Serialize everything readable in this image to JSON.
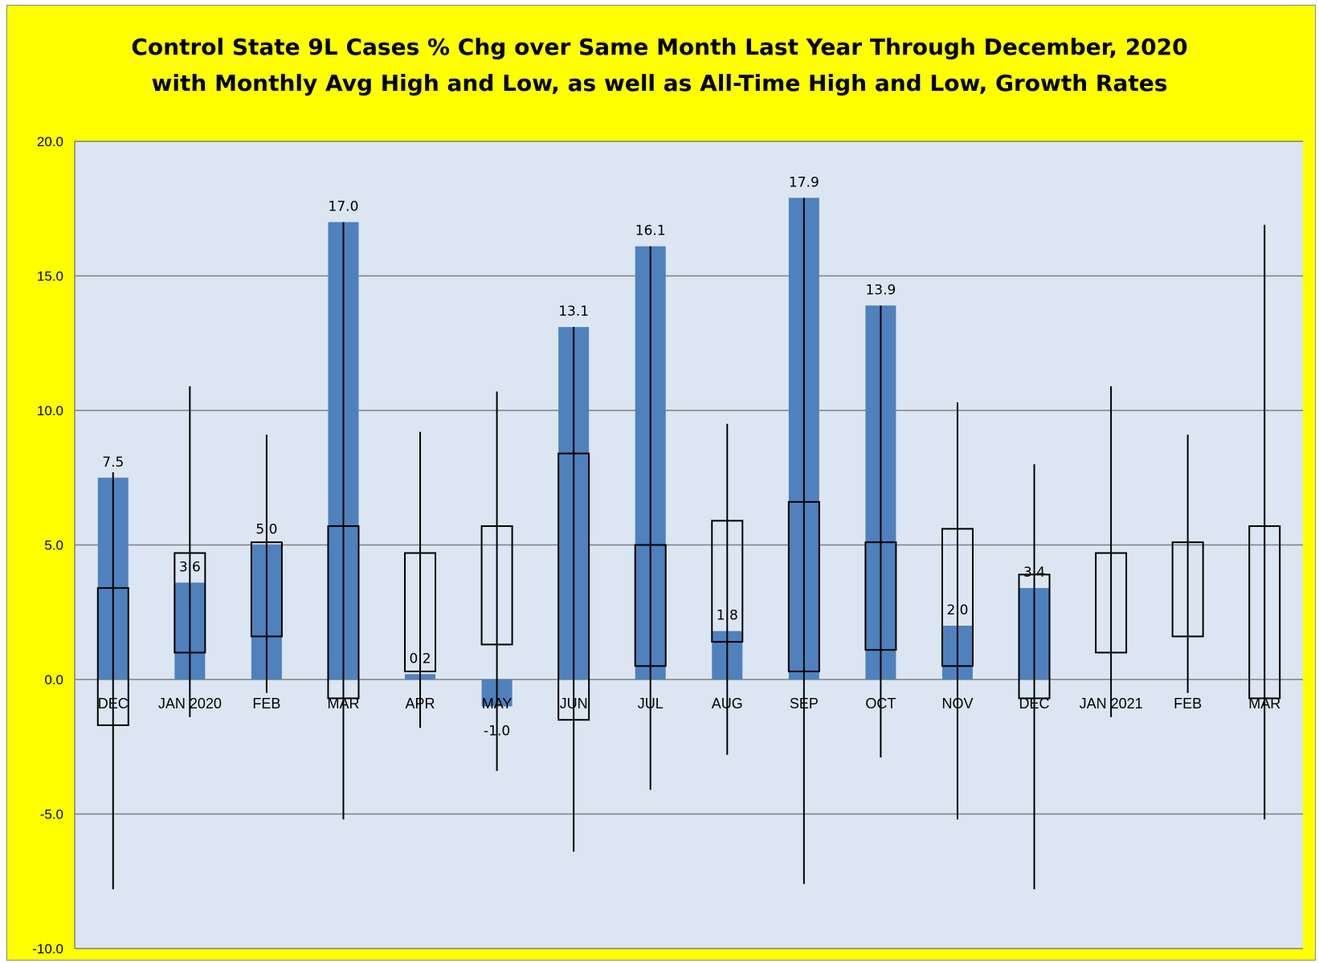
{
  "chart_data": {
    "type": "bar",
    "title_line1": "Control State 9L Cases % Chg over Same Month Last Year Through December, 2020",
    "title_line2": "with Monthly Avg High and Low, as well as All-Time High and Low,  Growth Rates",
    "xlabel": "",
    "ylabel": "",
    "ylim": [
      -10,
      20
    ],
    "yticks": [
      "20.0",
      "15.0",
      "10.0",
      "5.0",
      "0.0",
      "-5.0",
      "-10.0"
    ],
    "ytick_values": [
      20,
      15,
      10,
      5,
      0,
      -5,
      -10
    ],
    "grid": true,
    "categories": [
      "DEC",
      "JAN 2020",
      "FEB",
      "MAR",
      "APR",
      "MAY",
      "JUN",
      "JUL",
      "AUG",
      "SEP",
      "OCT",
      "NOV",
      "DEC",
      "JAN 2021",
      "FEB",
      "MAR"
    ],
    "actual": [
      7.5,
      3.6,
      5.0,
      17.0,
      0.2,
      -1.0,
      13.1,
      16.1,
      1.8,
      17.9,
      13.9,
      2.0,
      3.4,
      null,
      null,
      null
    ],
    "actual_labels": [
      "7.5",
      "3.6",
      "5.0",
      "17.0",
      "0.2",
      "-1.0",
      "13.1",
      "16.1",
      "1.8",
      "17.9",
      "13.9",
      "2.0",
      "3.4",
      "",
      "",
      ""
    ],
    "avg_high": [
      3.4,
      4.7,
      5.1,
      5.7,
      4.7,
      5.7,
      8.4,
      5.0,
      5.9,
      6.6,
      5.1,
      5.6,
      3.9,
      4.7,
      5.1,
      5.7
    ],
    "avg_low": [
      -1.7,
      1.0,
      1.6,
      -0.7,
      0.3,
      1.3,
      -1.5,
      0.5,
      1.4,
      0.3,
      1.1,
      0.5,
      -0.7,
      1.0,
      1.6,
      -0.7
    ],
    "all_time_high": [
      7.7,
      10.9,
      9.1,
      17.0,
      9.2,
      10.7,
      13.1,
      16.1,
      9.5,
      17.9,
      13.9,
      10.3,
      8.0,
      10.9,
      9.1,
      16.9
    ],
    "all_time_low": [
      -7.8,
      -1.4,
      -0.5,
      -5.2,
      -1.8,
      -3.4,
      -6.4,
      -4.1,
      -2.8,
      -7.6,
      -2.9,
      -5.2,
      -7.8,
      -1.4,
      -0.5,
      -5.2
    ],
    "colors": {
      "background": "#ffff00",
      "plot_area": "#dce6f2",
      "bar": "#4f81bd",
      "gridline": "#808080",
      "whisker": "#000000"
    }
  }
}
